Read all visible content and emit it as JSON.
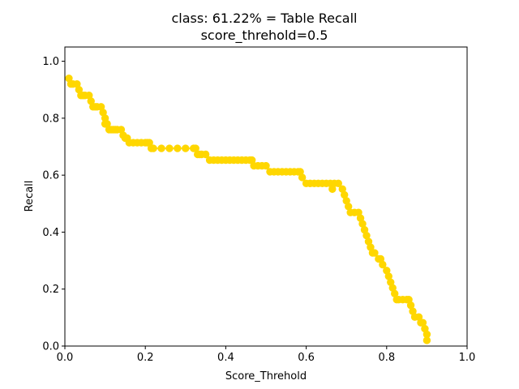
{
  "chart_data": {
    "type": "line",
    "title": "class: 61.22% = Table Recall",
    "subtitle": "score_threhold=0.5",
    "xlabel": "Score_Threhold",
    "ylabel": "Recall",
    "xlim": [
      0.0,
      1.0
    ],
    "ylim": [
      0.0,
      1.05
    ],
    "xticks": [
      "0.0",
      "0.2",
      "0.4",
      "0.6",
      "0.8",
      "1.0"
    ],
    "yticks": [
      "0.0",
      "0.2",
      "0.4",
      "0.6",
      "0.8",
      "1.0"
    ],
    "grid": false,
    "marker": "circle",
    "series": [
      {
        "color": "#FFD700",
        "x": [
          0.01,
          0.015,
          0.02,
          0.03,
          0.035,
          0.04,
          0.045,
          0.05,
          0.06,
          0.065,
          0.07,
          0.075,
          0.08,
          0.09,
          0.095,
          0.1,
          0.1,
          0.105,
          0.11,
          0.115,
          0.12,
          0.125,
          0.13,
          0.14,
          0.145,
          0.15,
          0.155,
          0.16,
          0.17,
          0.18,
          0.19,
          0.2,
          0.205,
          0.21,
          0.215,
          0.22,
          0.24,
          0.26,
          0.28,
          0.3,
          0.32,
          0.325,
          0.33,
          0.335,
          0.34,
          0.35,
          0.36,
          0.37,
          0.38,
          0.39,
          0.4,
          0.41,
          0.42,
          0.43,
          0.44,
          0.45,
          0.46,
          0.465,
          0.47,
          0.48,
          0.49,
          0.5,
          0.51,
          0.52,
          0.53,
          0.54,
          0.55,
          0.56,
          0.57,
          0.58,
          0.585,
          0.59,
          0.6,
          0.61,
          0.62,
          0.63,
          0.64,
          0.65,
          0.66,
          0.665,
          0.67,
          0.68,
          0.69,
          0.695,
          0.7,
          0.705,
          0.71,
          0.72,
          0.73,
          0.735,
          0.74,
          0.745,
          0.75,
          0.755,
          0.76,
          0.765,
          0.77,
          0.78,
          0.785,
          0.79,
          0.8,
          0.805,
          0.81,
          0.815,
          0.82,
          0.825,
          0.83,
          0.84,
          0.85,
          0.855,
          0.86,
          0.865,
          0.87,
          0.88,
          0.885,
          0.89,
          0.895,
          0.9,
          0.9
        ],
        "y": [
          0.94,
          0.92,
          0.92,
          0.92,
          0.9,
          0.88,
          0.88,
          0.88,
          0.88,
          0.86,
          0.84,
          0.84,
          0.84,
          0.84,
          0.82,
          0.8,
          0.78,
          0.78,
          0.76,
          0.76,
          0.76,
          0.76,
          0.76,
          0.76,
          0.74,
          0.73,
          0.73,
          0.714,
          0.714,
          0.714,
          0.714,
          0.714,
          0.714,
          0.714,
          0.694,
          0.694,
          0.694,
          0.694,
          0.694,
          0.694,
          0.694,
          0.694,
          0.673,
          0.673,
          0.673,
          0.673,
          0.653,
          0.653,
          0.653,
          0.653,
          0.653,
          0.653,
          0.653,
          0.653,
          0.653,
          0.653,
          0.653,
          0.653,
          0.633,
          0.633,
          0.633,
          0.633,
          0.612,
          0.612,
          0.612,
          0.612,
          0.612,
          0.612,
          0.612,
          0.612,
          0.612,
          0.592,
          0.571,
          0.571,
          0.571,
          0.571,
          0.571,
          0.571,
          0.571,
          0.551,
          0.571,
          0.571,
          0.551,
          0.531,
          0.51,
          0.49,
          0.469,
          0.469,
          0.469,
          0.449,
          0.429,
          0.408,
          0.388,
          0.367,
          0.347,
          0.327,
          0.327,
          0.306,
          0.306,
          0.286,
          0.265,
          0.245,
          0.224,
          0.204,
          0.184,
          0.163,
          0.163,
          0.163,
          0.163,
          0.163,
          0.143,
          0.122,
          0.102,
          0.102,
          0.082,
          0.082,
          0.061,
          0.041,
          0.02
        ]
      }
    ]
  }
}
